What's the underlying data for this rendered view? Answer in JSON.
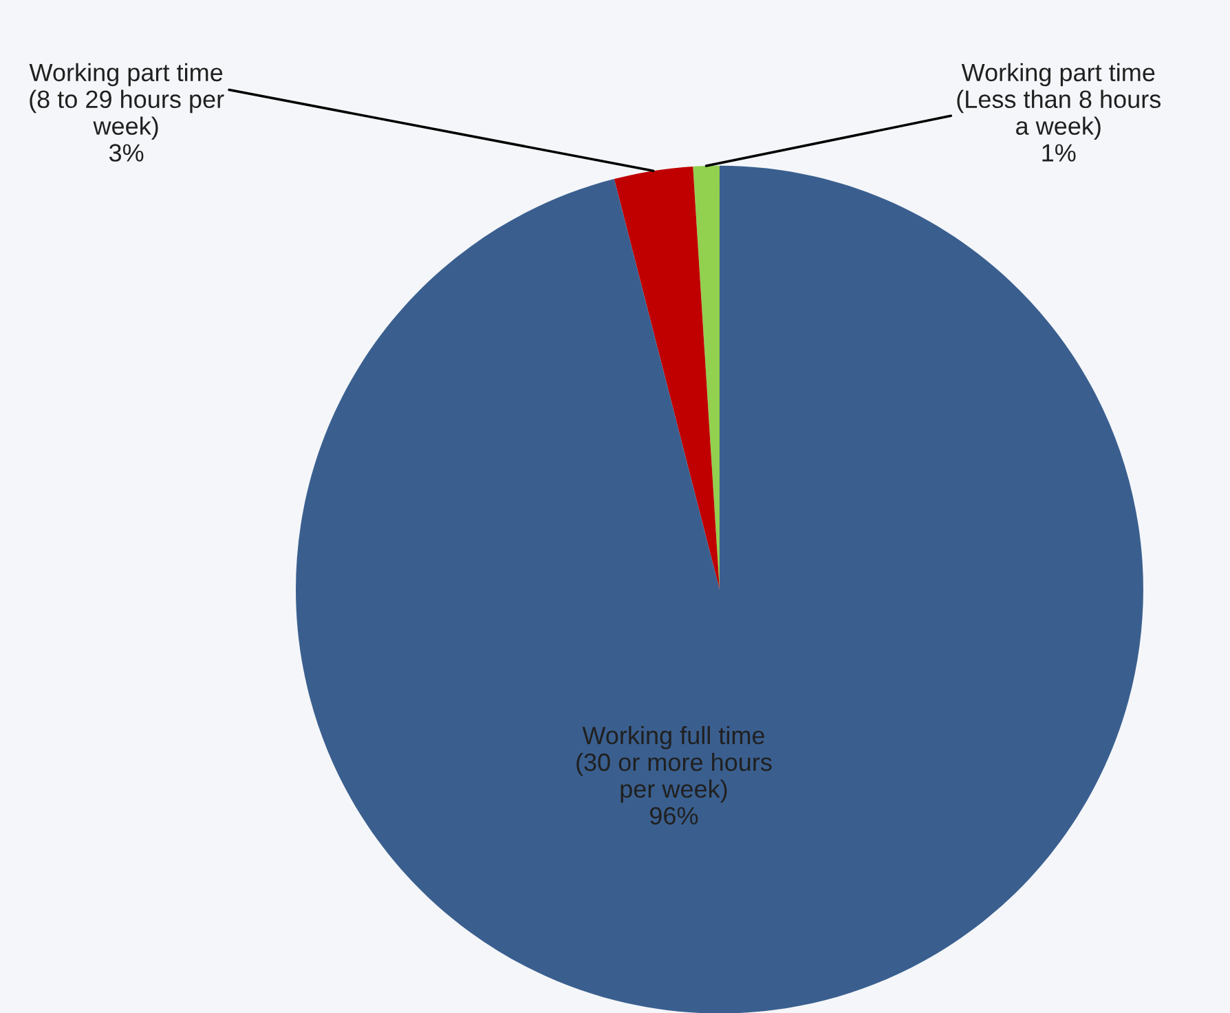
{
  "chart_data": {
    "type": "pie",
    "categories": [
      "Working part time\n(Less than 8 hours\na week)",
      "Working part time\n(8 to 29 hours per\nweek)",
      "Working full time\n(30 or more hours\nper week)"
    ],
    "values": [
      1,
      3,
      96
    ],
    "colors": [
      "#92d050",
      "#c00000",
      "#3a5f8f"
    ],
    "value_labels": [
      "1%",
      "3%",
      "96%"
    ]
  }
}
